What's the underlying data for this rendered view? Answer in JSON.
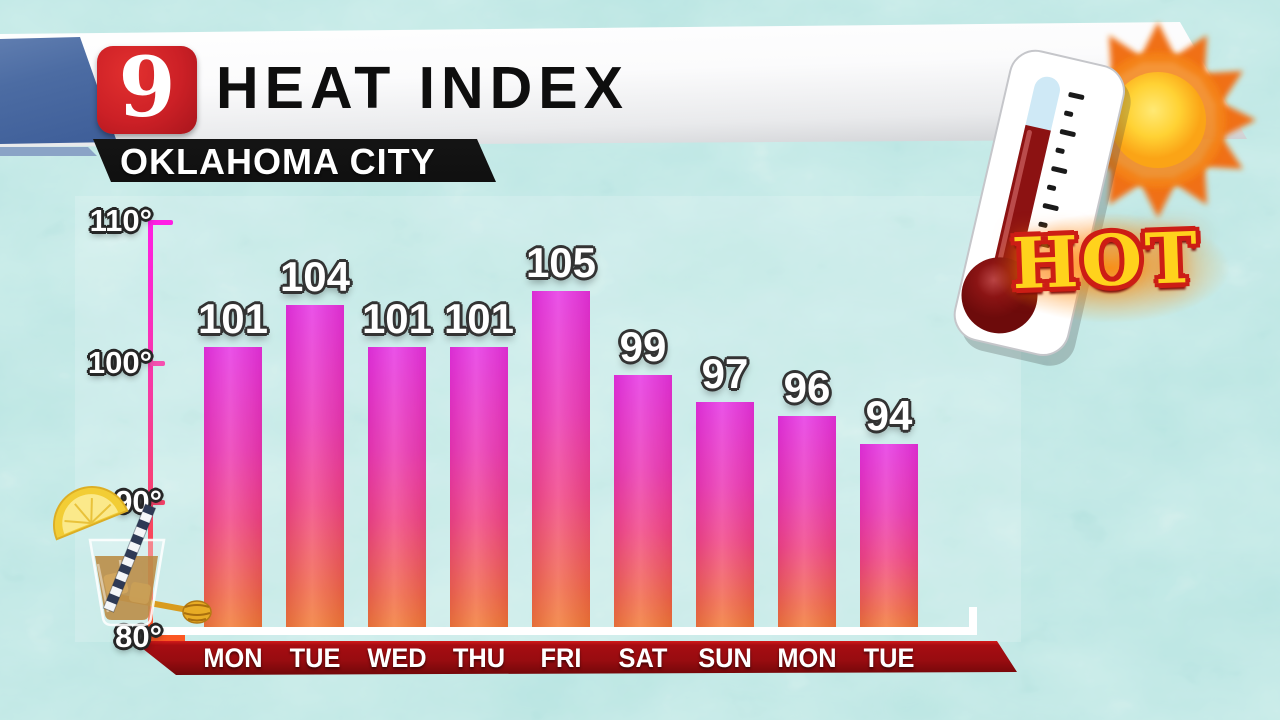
{
  "station": {
    "channel_number": "9",
    "banner_title": "HEAT INDEX",
    "location": "OKLAHOMA CITY"
  },
  "hot_badge": {
    "label": "HOT"
  },
  "icons": [
    "channel-9-logo",
    "sun-icon",
    "thermometer-icon",
    "iced-tea-glass-icon",
    "lemon-slice-icon",
    "straw-icon",
    "honey-dipper-icon"
  ],
  "chart_data": {
    "type": "bar",
    "title": "HEAT INDEX",
    "subtitle": "OKLAHOMA CITY",
    "categories": [
      "MON",
      "TUE",
      "WED",
      "THU",
      "FRI",
      "SAT",
      "SUN",
      "MON",
      "TUE"
    ],
    "values": [
      101,
      104,
      101,
      101,
      105,
      99,
      97,
      96,
      94
    ],
    "ylim": [
      80,
      110
    ],
    "yticks": [
      110,
      100,
      90,
      80
    ],
    "ytick_labels": [
      "110°",
      "100°",
      "90°",
      "80°"
    ],
    "xlabel": "",
    "ylabel": "",
    "grid": false,
    "legend": "none",
    "colors": {
      "bar_gradient_top": "#e82ae4",
      "bar_gradient_mid": "#f43d82",
      "bar_gradient_bottom": "#f47a28",
      "axis_top": "#ff1fe4",
      "axis_bottom": "#fb5622",
      "baseline": "#ffffff",
      "day_band": "#9a0d11",
      "label_text": "#ffffff",
      "background_water": "#7fcfca"
    }
  }
}
